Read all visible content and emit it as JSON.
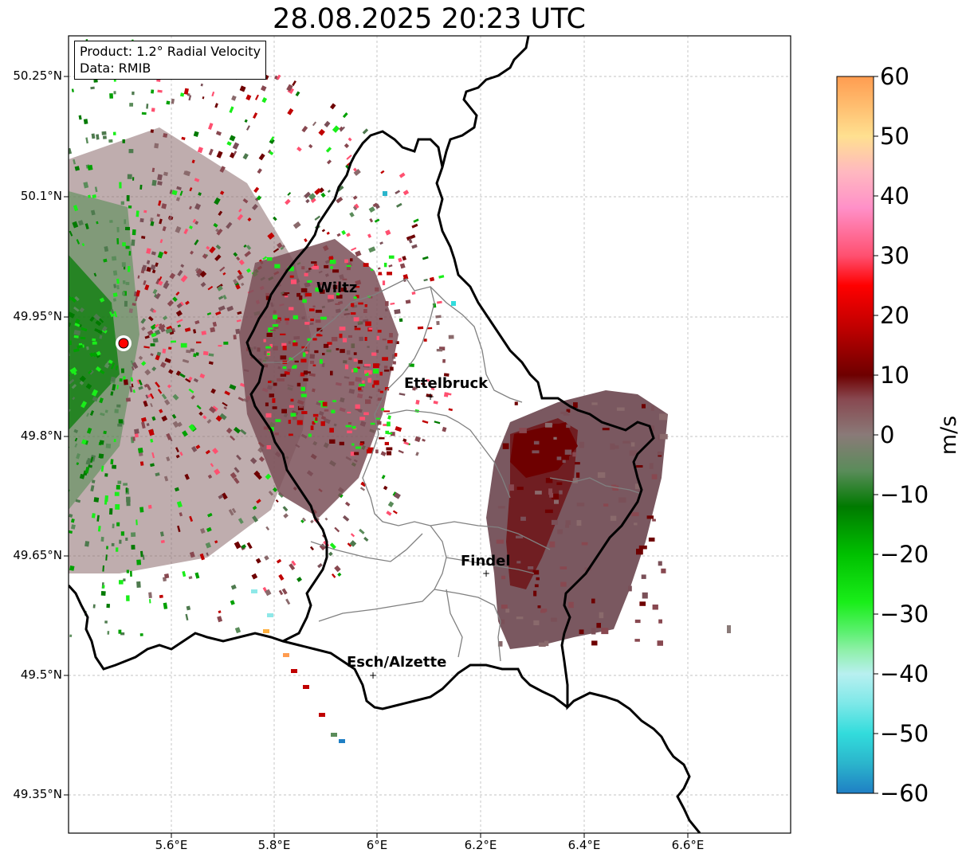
{
  "title": "28.08.2025 20:23 UTC",
  "info": {
    "product": "Product: 1.2° Radial Velocity",
    "data_source": "Data: RMIB"
  },
  "map": {
    "lat_labels": [
      "50.25°N",
      "50.1°N",
      "49.95°N",
      "49.8°N",
      "49.65°N",
      "49.5°N",
      "49.35°N"
    ],
    "lon_labels": [
      "5.6°E",
      "5.8°E",
      "6°E",
      "6.2°E",
      "6.4°E",
      "6.6°E"
    ],
    "cities": [
      {
        "name": "Wiltz"
      },
      {
        "name": "Ettelbruck"
      },
      {
        "name": "Findel"
      },
      {
        "name": "Esch/Alzette"
      }
    ],
    "radar_site_color": "#ff0000",
    "border_color": "#000000",
    "canton_border_color": "#808080"
  },
  "colorbar": {
    "unit": "m/s",
    "ticks": [
      "60",
      "50",
      "40",
      "30",
      "20",
      "10",
      "0",
      "−10",
      "−20",
      "−30",
      "−40",
      "−50",
      "−60"
    ],
    "range": [
      -60,
      60
    ],
    "colors": [
      {
        "v": -60,
        "c": "#1f7fc4"
      },
      {
        "v": -55,
        "c": "#2bb5cc"
      },
      {
        "v": -50,
        "c": "#32dcdc"
      },
      {
        "v": -45,
        "c": "#7de8e8"
      },
      {
        "v": -40,
        "c": "#b8f0f0"
      },
      {
        "v": -36,
        "c": "#8ef0a8"
      },
      {
        "v": -33,
        "c": "#5cf070"
      },
      {
        "v": -28,
        "c": "#19ee19"
      },
      {
        "v": -20,
        "c": "#00c000"
      },
      {
        "v": -12,
        "c": "#007a00"
      },
      {
        "v": -6,
        "c": "#5a8c5a"
      },
      {
        "v": 0,
        "c": "#8a7a78"
      },
      {
        "v": 6,
        "c": "#884850"
      },
      {
        "v": 10,
        "c": "#6e0000"
      },
      {
        "v": 18,
        "c": "#c00000"
      },
      {
        "v": 25,
        "c": "#ff0000"
      },
      {
        "v": 30,
        "c": "#ff5070"
      },
      {
        "v": 38,
        "c": "#ff90c8"
      },
      {
        "v": 44,
        "c": "#ffb8c0"
      },
      {
        "v": 50,
        "c": "#ffe090"
      },
      {
        "v": 60,
        "c": "#ff9c50"
      }
    ]
  }
}
